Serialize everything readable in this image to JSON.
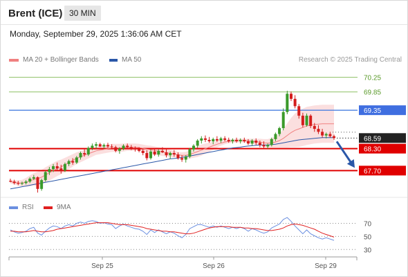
{
  "header": {
    "instrument": "Brent (ICE)",
    "timeframe": "30 MIN"
  },
  "datetime": "Monday, September 29, 2025 1:36:06 AM CET",
  "legend": {
    "ma20": {
      "label": "MA 20 + Bollinger Bands",
      "color": "#f08080"
    },
    "ma50": {
      "label": "MA 50",
      "color": "#2a57a8"
    },
    "credit": "Research © 2025 Trading Central"
  },
  "rsi_legend": {
    "rsi": {
      "label": "RSI",
      "color": "#6b8fe0"
    },
    "ma9": {
      "label": "9MA",
      "color": "#e02020"
    }
  },
  "chart_data": [
    {
      "type": "candlestick",
      "x_labels": [
        "Sep 25",
        "Sep 26",
        "Sep 29"
      ],
      "ylim": [
        66.95,
        70.45
      ],
      "levels": [
        {
          "value": 70.25,
          "label": "70.25",
          "color": "#8dc063",
          "kind": "resistance"
        },
        {
          "value": 69.85,
          "label": "69.85",
          "color": "#8dc063",
          "kind": "resistance"
        },
        {
          "value": 69.35,
          "label": "69.35",
          "color": "#4a7fe0",
          "kind": "pivot"
        },
        {
          "value": 68.3,
          "label": "68.30",
          "color": "#e00000",
          "kind": "support"
        },
        {
          "value": 67.7,
          "label": "67.70",
          "color": "#e00000",
          "kind": "support"
        }
      ],
      "last_price": {
        "value": 68.59,
        "label": "68.59"
      },
      "candles": [
        {
          "o": 67.42,
          "h": 67.48,
          "l": 67.38,
          "c": 67.4
        },
        {
          "o": 67.4,
          "h": 67.45,
          "l": 67.32,
          "c": 67.36
        },
        {
          "o": 67.36,
          "h": 67.42,
          "l": 67.3,
          "c": 67.34
        },
        {
          "o": 67.34,
          "h": 67.4,
          "l": 67.3,
          "c": 67.36
        },
        {
          "o": 67.36,
          "h": 67.44,
          "l": 67.32,
          "c": 67.4
        },
        {
          "o": 67.4,
          "h": 67.52,
          "l": 67.36,
          "c": 67.48
        },
        {
          "o": 67.48,
          "h": 67.58,
          "l": 67.44,
          "c": 67.52
        },
        {
          "o": 67.52,
          "h": 67.54,
          "l": 67.1,
          "c": 67.2
        },
        {
          "o": 67.2,
          "h": 67.48,
          "l": 67.15,
          "c": 67.44
        },
        {
          "o": 67.44,
          "h": 67.7,
          "l": 67.4,
          "c": 67.66
        },
        {
          "o": 67.66,
          "h": 67.8,
          "l": 67.58,
          "c": 67.74
        },
        {
          "o": 67.74,
          "h": 67.88,
          "l": 67.66,
          "c": 67.82
        },
        {
          "o": 67.82,
          "h": 67.92,
          "l": 67.7,
          "c": 67.76
        },
        {
          "o": 67.76,
          "h": 67.86,
          "l": 67.62,
          "c": 67.7
        },
        {
          "o": 67.7,
          "h": 67.92,
          "l": 67.66,
          "c": 67.88
        },
        {
          "o": 67.88,
          "h": 68.0,
          "l": 67.82,
          "c": 67.96
        },
        {
          "o": 67.96,
          "h": 68.04,
          "l": 67.86,
          "c": 67.92
        },
        {
          "o": 67.92,
          "h": 68.1,
          "l": 67.88,
          "c": 68.06
        },
        {
          "o": 68.06,
          "h": 68.22,
          "l": 68.0,
          "c": 68.18
        },
        {
          "o": 68.18,
          "h": 68.28,
          "l": 68.08,
          "c": 68.14
        },
        {
          "o": 68.14,
          "h": 68.36,
          "l": 68.1,
          "c": 68.32
        },
        {
          "o": 68.32,
          "h": 68.44,
          "l": 68.26,
          "c": 68.38
        },
        {
          "o": 68.38,
          "h": 68.48,
          "l": 68.3,
          "c": 68.42
        },
        {
          "o": 68.42,
          "h": 68.46,
          "l": 68.34,
          "c": 68.36
        },
        {
          "o": 68.36,
          "h": 68.44,
          "l": 68.3,
          "c": 68.4
        },
        {
          "o": 68.4,
          "h": 68.46,
          "l": 68.32,
          "c": 68.36
        },
        {
          "o": 68.36,
          "h": 68.42,
          "l": 68.3,
          "c": 68.34
        },
        {
          "o": 68.34,
          "h": 68.38,
          "l": 68.2,
          "c": 68.24
        },
        {
          "o": 68.24,
          "h": 68.34,
          "l": 68.16,
          "c": 68.3
        },
        {
          "o": 68.3,
          "h": 68.42,
          "l": 68.26,
          "c": 68.38
        },
        {
          "o": 68.38,
          "h": 68.44,
          "l": 68.3,
          "c": 68.34
        },
        {
          "o": 68.34,
          "h": 68.4,
          "l": 68.26,
          "c": 68.3
        },
        {
          "o": 68.3,
          "h": 68.36,
          "l": 68.22,
          "c": 68.28
        },
        {
          "o": 68.28,
          "h": 68.34,
          "l": 68.2,
          "c": 68.24
        },
        {
          "o": 68.24,
          "h": 68.3,
          "l": 68.12,
          "c": 68.18
        },
        {
          "o": 68.18,
          "h": 68.26,
          "l": 67.98,
          "c": 68.04
        },
        {
          "o": 68.04,
          "h": 68.28,
          "l": 68.0,
          "c": 68.22
        },
        {
          "o": 68.22,
          "h": 68.3,
          "l": 68.1,
          "c": 68.14
        },
        {
          "o": 68.14,
          "h": 68.28,
          "l": 68.08,
          "c": 68.24
        },
        {
          "o": 68.24,
          "h": 68.34,
          "l": 68.18,
          "c": 68.2
        },
        {
          "o": 68.2,
          "h": 68.28,
          "l": 68.06,
          "c": 68.12
        },
        {
          "o": 68.12,
          "h": 68.22,
          "l": 68.02,
          "c": 68.18
        },
        {
          "o": 68.18,
          "h": 68.26,
          "l": 68.08,
          "c": 68.14
        },
        {
          "o": 68.14,
          "h": 68.2,
          "l": 68.0,
          "c": 68.04
        },
        {
          "o": 68.04,
          "h": 68.12,
          "l": 67.94,
          "c": 68.0
        },
        {
          "o": 68.0,
          "h": 68.12,
          "l": 67.92,
          "c": 68.08
        },
        {
          "o": 68.08,
          "h": 68.32,
          "l": 68.04,
          "c": 68.28
        },
        {
          "o": 68.28,
          "h": 68.42,
          "l": 68.22,
          "c": 68.38
        },
        {
          "o": 68.38,
          "h": 68.56,
          "l": 68.32,
          "c": 68.52
        },
        {
          "o": 68.52,
          "h": 68.64,
          "l": 68.44,
          "c": 68.58
        },
        {
          "o": 68.58,
          "h": 68.66,
          "l": 68.48,
          "c": 68.54
        },
        {
          "o": 68.54,
          "h": 68.62,
          "l": 68.46,
          "c": 68.5
        },
        {
          "o": 68.5,
          "h": 68.6,
          "l": 68.42,
          "c": 68.56
        },
        {
          "o": 68.56,
          "h": 68.64,
          "l": 68.48,
          "c": 68.52
        },
        {
          "o": 68.52,
          "h": 68.62,
          "l": 68.46,
          "c": 68.58
        },
        {
          "o": 68.58,
          "h": 68.64,
          "l": 68.5,
          "c": 68.54
        },
        {
          "o": 68.54,
          "h": 68.6,
          "l": 68.46,
          "c": 68.5
        },
        {
          "o": 68.5,
          "h": 68.58,
          "l": 68.44,
          "c": 68.54
        },
        {
          "o": 68.54,
          "h": 68.6,
          "l": 68.46,
          "c": 68.5
        },
        {
          "o": 68.5,
          "h": 68.58,
          "l": 68.44,
          "c": 68.54
        },
        {
          "o": 68.54,
          "h": 68.6,
          "l": 68.46,
          "c": 68.5
        },
        {
          "o": 68.5,
          "h": 68.56,
          "l": 68.4,
          "c": 68.44
        },
        {
          "o": 68.44,
          "h": 68.56,
          "l": 68.38,
          "c": 68.52
        },
        {
          "o": 68.52,
          "h": 68.58,
          "l": 68.4,
          "c": 68.46
        },
        {
          "o": 68.46,
          "h": 68.52,
          "l": 68.34,
          "c": 68.4
        },
        {
          "o": 68.4,
          "h": 68.5,
          "l": 68.3,
          "c": 68.36
        },
        {
          "o": 68.36,
          "h": 68.44,
          "l": 68.3,
          "c": 68.4
        },
        {
          "o": 68.4,
          "h": 68.6,
          "l": 68.36,
          "c": 68.56
        },
        {
          "o": 68.56,
          "h": 68.74,
          "l": 68.5,
          "c": 68.7
        },
        {
          "o": 68.7,
          "h": 68.9,
          "l": 68.64,
          "c": 68.86
        },
        {
          "o": 68.86,
          "h": 69.4,
          "l": 68.8,
          "c": 69.3
        },
        {
          "o": 69.3,
          "h": 69.88,
          "l": 69.24,
          "c": 69.8
        },
        {
          "o": 69.8,
          "h": 69.86,
          "l": 69.6,
          "c": 69.66
        },
        {
          "o": 69.66,
          "h": 69.76,
          "l": 69.4,
          "c": 69.46
        },
        {
          "o": 69.46,
          "h": 69.52,
          "l": 69.12,
          "c": 69.2
        },
        {
          "o": 69.2,
          "h": 69.28,
          "l": 68.88,
          "c": 68.94
        },
        {
          "o": 68.94,
          "h": 69.26,
          "l": 68.9,
          "c": 69.2
        },
        {
          "o": 69.2,
          "h": 69.24,
          "l": 68.86,
          "c": 68.92
        },
        {
          "o": 68.92,
          "h": 69.0,
          "l": 68.76,
          "c": 68.84
        },
        {
          "o": 68.84,
          "h": 68.94,
          "l": 68.7,
          "c": 68.76
        },
        {
          "o": 68.76,
          "h": 68.84,
          "l": 68.6,
          "c": 68.66
        },
        {
          "o": 68.66,
          "h": 68.74,
          "l": 68.58,
          "c": 68.7
        },
        {
          "o": 68.7,
          "h": 68.76,
          "l": 68.6,
          "c": 68.64
        },
        {
          "o": 68.64,
          "h": 68.68,
          "l": 68.54,
          "c": 68.59
        }
      ],
      "ma20": [
        67.4,
        67.38,
        67.36,
        67.36,
        67.38,
        67.42,
        67.46,
        67.48,
        67.52,
        67.58,
        67.64,
        67.7,
        67.76,
        67.8,
        67.86,
        67.92,
        67.98,
        68.04,
        68.08,
        68.12,
        68.16,
        68.2,
        68.24,
        68.26,
        68.28,
        68.3,
        68.32,
        68.32,
        68.32,
        68.33,
        68.34,
        68.34,
        68.34,
        68.33,
        68.31,
        68.29,
        68.27,
        68.25,
        68.23,
        68.21,
        68.19,
        68.17,
        68.15,
        68.13,
        68.12,
        68.12,
        68.14,
        68.18,
        68.22,
        68.26,
        68.3,
        68.34,
        68.38,
        68.42,
        68.45,
        68.48,
        68.5,
        68.51,
        68.52,
        68.52,
        68.52,
        68.51,
        68.5,
        68.49,
        68.48,
        68.46,
        68.45,
        68.46,
        68.48,
        68.52,
        68.58,
        68.66,
        68.74,
        68.8,
        68.84,
        68.88,
        68.92,
        68.94,
        68.96,
        68.97,
        68.98,
        68.98,
        68.98,
        68.98
      ],
      "ma50": [
        67.2,
        67.22,
        67.24,
        67.26,
        67.28,
        67.3,
        67.32,
        67.34,
        67.36,
        67.38,
        67.4,
        67.42,
        67.44,
        67.46,
        67.48,
        67.5,
        67.52,
        67.54,
        67.56,
        67.58,
        67.6,
        67.62,
        67.64,
        67.66,
        67.68,
        67.7,
        67.72,
        67.74,
        67.76,
        67.78,
        67.8,
        67.82,
        67.84,
        67.86,
        67.88,
        67.9,
        67.92,
        67.94,
        67.96,
        67.98,
        68.0,
        68.02,
        68.03,
        68.04,
        68.06,
        68.08,
        68.1,
        68.12,
        68.14,
        68.16,
        68.18,
        68.2,
        68.22,
        68.24,
        68.26,
        68.28,
        68.3,
        68.32,
        68.33,
        68.34,
        68.36,
        68.37,
        68.38,
        68.39,
        68.4,
        68.4,
        68.4,
        68.41,
        68.42,
        68.44,
        68.46,
        68.48,
        68.5,
        68.52,
        68.54,
        68.55,
        68.56,
        68.57,
        68.58,
        68.59,
        68.6,
        68.6,
        68.6,
        68.6
      ],
      "bb_width": [
        0.1,
        0.12,
        0.14,
        0.18,
        0.24,
        0.3,
        0.34,
        0.38,
        0.4,
        0.42,
        0.42,
        0.42,
        0.42,
        0.4,
        0.38,
        0.36,
        0.34,
        0.32,
        0.3,
        0.28,
        0.26,
        0.24,
        0.22,
        0.22,
        0.22,
        0.22,
        0.22,
        0.22,
        0.22,
        0.22,
        0.2,
        0.2,
        0.2,
        0.2,
        0.2,
        0.2,
        0.22,
        0.22,
        0.22,
        0.22,
        0.2,
        0.2,
        0.18,
        0.16,
        0.16,
        0.18,
        0.22,
        0.26,
        0.3,
        0.3,
        0.28,
        0.26,
        0.22,
        0.18,
        0.14,
        0.12,
        0.1,
        0.1,
        0.1,
        0.1,
        0.1,
        0.12,
        0.14,
        0.16,
        0.18,
        0.2,
        0.22,
        0.26,
        0.3,
        0.38,
        0.5,
        0.66,
        0.8,
        0.92,
        0.98,
        1.02,
        1.04,
        1.04,
        1.04,
        1.04,
        1.04,
        1.04,
        1.04,
        1.04
      ],
      "projection": {
        "from": 68.59,
        "to": 67.7
      }
    },
    {
      "type": "line",
      "title": "RSI",
      "ylim": [
        25,
        78
      ],
      "y_ticks": [
        {
          "value": 70,
          "label": "70"
        },
        {
          "value": 50,
          "label": "50"
        },
        {
          "value": 30,
          "label": "30"
        }
      ],
      "series": [
        {
          "name": "RSI",
          "color": "#6b8fe0",
          "values": [
            60,
            57,
            55,
            56,
            58,
            62,
            64,
            55,
            52,
            58,
            63,
            66,
            65,
            62,
            66,
            68,
            66,
            70,
            72,
            70,
            73,
            74,
            73,
            70,
            71,
            69,
            68,
            62,
            66,
            69,
            66,
            64,
            62,
            61,
            58,
            53,
            60,
            56,
            60,
            57,
            54,
            57,
            55,
            51,
            48,
            53,
            62,
            65,
            68,
            68,
            66,
            64,
            66,
            64,
            66,
            64,
            62,
            64,
            62,
            64,
            62,
            58,
            62,
            60,
            57,
            55,
            57,
            63,
            66,
            69,
            76,
            79,
            73,
            66,
            60,
            54,
            60,
            54,
            51,
            48,
            46,
            48,
            46,
            44
          ]
        },
        {
          "name": "9MA",
          "color": "#e02020",
          "values": [
            58,
            58,
            57,
            57,
            57,
            58,
            59,
            58,
            57,
            57,
            58,
            59,
            61,
            62,
            63,
            64,
            65,
            66,
            67,
            68,
            69,
            70,
            71,
            71,
            71,
            71,
            70,
            69,
            68,
            68,
            68,
            67,
            66,
            65,
            64,
            62,
            61,
            60,
            59,
            58,
            58,
            57,
            57,
            56,
            55,
            54,
            54,
            55,
            57,
            59,
            61,
            63,
            64,
            65,
            65,
            65,
            65,
            64,
            64,
            64,
            63,
            63,
            62,
            62,
            61,
            60,
            59,
            59,
            60,
            61,
            63,
            66,
            68,
            69,
            68,
            67,
            65,
            63,
            61,
            58,
            55,
            53,
            51,
            49
          ]
        }
      ],
      "hlines": [
        70,
        50,
        30
      ]
    }
  ]
}
